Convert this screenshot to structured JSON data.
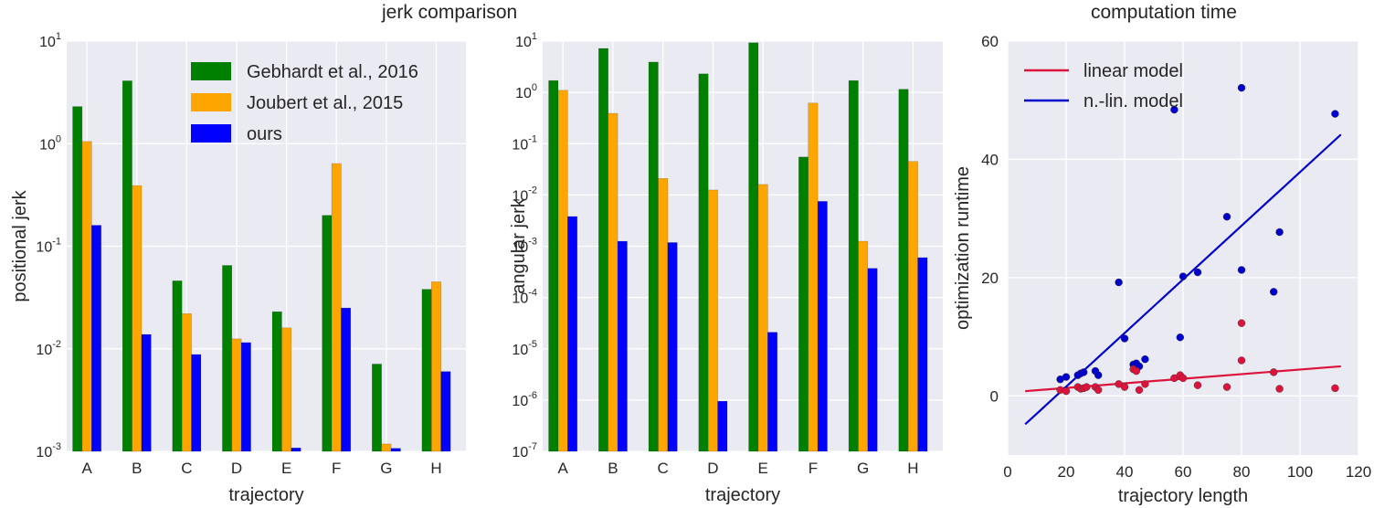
{
  "figure": {
    "group_title": "jerk comparison",
    "right_title": "computation time"
  },
  "colors": {
    "panel_bg": "#eaeaf2",
    "grid": "#ffffff",
    "gebhardt": "#008000",
    "joubert": "#ffa500",
    "ours": "#0000ff",
    "linear": "#dc143c",
    "nonlinear": "#0000cd"
  },
  "chart_data": [
    {
      "type": "bar",
      "title": "",
      "xlabel": "trajectory",
      "ylabel": "positional jerk",
      "yscale": "log",
      "ylim": [
        0.001,
        10
      ],
      "yticks": [
        {
          "value": 10,
          "base": "10",
          "exp": "1"
        },
        {
          "value": 1,
          "base": "10",
          "exp": "0"
        },
        {
          "value": 0.1,
          "base": "10",
          "exp": "-1"
        },
        {
          "value": 0.01,
          "base": "10",
          "exp": "-2"
        },
        {
          "value": 0.001,
          "base": "10",
          "exp": "-3"
        }
      ],
      "categories": [
        "A",
        "B",
        "C",
        "D",
        "E",
        "F",
        "G",
        "H"
      ],
      "legend_position": "top-right",
      "series": [
        {
          "name": "Gebhardt et al., 2016",
          "color": "#008000",
          "values": [
            2.3,
            4.1,
            0.046,
            0.065,
            0.023,
            0.2,
            0.0071,
            0.038
          ]
        },
        {
          "name": "Joubert et al., 2015",
          "color": "#ffa500",
          "values": [
            1.05,
            0.39,
            0.022,
            0.0125,
            0.016,
            0.64,
            0.00118,
            0.045
          ]
        },
        {
          "name": "ours",
          "color": "#0000ff",
          "values": [
            0.16,
            0.0138,
            0.0088,
            0.0115,
            0.00108,
            0.025,
            0.00107,
            0.006
          ]
        }
      ]
    },
    {
      "type": "bar",
      "title": "",
      "xlabel": "trajectory",
      "ylabel": "angular jerk",
      "yscale": "log",
      "ylim": [
        1e-07,
        10
      ],
      "yticks": [
        {
          "value": 10,
          "base": "10",
          "exp": "1"
        },
        {
          "value": 1,
          "base": "10",
          "exp": "0"
        },
        {
          "value": 0.1,
          "base": "10",
          "exp": "-1"
        },
        {
          "value": 0.01,
          "base": "10",
          "exp": "-2"
        },
        {
          "value": 0.001,
          "base": "10",
          "exp": "-3"
        },
        {
          "value": 0.0001,
          "base": "10",
          "exp": "-4"
        },
        {
          "value": 1e-05,
          "base": "10",
          "exp": "-5"
        },
        {
          "value": 1e-06,
          "base": "10",
          "exp": "-6"
        },
        {
          "value": 1e-07,
          "base": "10",
          "exp": "-7"
        }
      ],
      "categories": [
        "A",
        "B",
        "C",
        "D",
        "E",
        "F",
        "G",
        "H"
      ],
      "series": [
        {
          "name": "Gebhardt et al., 2016",
          "color": "#008000",
          "values": [
            1.7,
            7.2,
            3.9,
            2.3,
            9.3,
            0.055,
            1.7,
            1.15
          ]
        },
        {
          "name": "Joubert et al., 2015",
          "color": "#ffa500",
          "values": [
            1.1,
            0.39,
            0.021,
            0.0125,
            0.016,
            0.62,
            0.00125,
            0.045
          ]
        },
        {
          "name": "ours",
          "color": "#0000ff",
          "values": [
            0.0038,
            0.00125,
            0.00118,
            9.5e-07,
            2.1e-05,
            0.0075,
            0.00037,
            0.0006
          ]
        }
      ]
    },
    {
      "type": "scatter",
      "title": "computation time",
      "xlabel": "trajectory length",
      "ylabel": "optimization runtime",
      "xlim": [
        0,
        120
      ],
      "ylim": [
        -10,
        60
      ],
      "xticks": [
        0,
        20,
        40,
        60,
        80,
        100,
        120
      ],
      "yticks": [
        0,
        20,
        40,
        60
      ],
      "legend_position": "top-left",
      "series": [
        {
          "name": "linear model",
          "color": "#dc143c",
          "line": {
            "x": [
              6,
              114
            ],
            "y": [
              0.8,
              5.0
            ]
          },
          "points": [
            [
              18,
              1.0
            ],
            [
              20,
              0.8
            ],
            [
              24,
              1.5
            ],
            [
              25,
              1.2
            ],
            [
              26,
              1.3
            ],
            [
              27,
              1.5
            ],
            [
              30,
              1.5
            ],
            [
              31,
              1.0
            ],
            [
              38,
              2.0
            ],
            [
              40,
              1.5
            ],
            [
              43,
              4.5
            ],
            [
              44,
              4.2
            ],
            [
              45,
              1.0
            ],
            [
              47,
              2.0
            ],
            [
              57,
              3.0
            ],
            [
              59,
              3.5
            ],
            [
              60,
              3.0
            ],
            [
              65,
              1.8
            ],
            [
              75,
              1.5
            ],
            [
              80,
              6.0
            ],
            [
              80,
              12.3
            ],
            [
              91,
              4.0
            ],
            [
              93,
              1.2
            ],
            [
              112,
              1.3
            ]
          ]
        },
        {
          "name": "n.-lin. model",
          "color": "#0000cd",
          "line": {
            "x": [
              6,
              114
            ],
            "y": [
              -4.8,
              44.2
            ]
          },
          "points": [
            [
              18,
              2.8
            ],
            [
              20,
              3.2
            ],
            [
              24,
              3.5
            ],
            [
              25,
              3.8
            ],
            [
              26,
              4.0
            ],
            [
              30,
              4.2
            ],
            [
              31,
              3.5
            ],
            [
              38,
              19.2
            ],
            [
              40,
              9.7
            ],
            [
              43,
              5.3
            ],
            [
              44,
              5.5
            ],
            [
              45,
              5.0
            ],
            [
              47,
              6.2
            ],
            [
              57,
              48.4
            ],
            [
              59,
              9.9
            ],
            [
              60,
              20.2
            ],
            [
              65,
              20.9
            ],
            [
              75,
              30.3
            ],
            [
              80,
              52.1
            ],
            [
              80,
              21.3
            ],
            [
              91,
              17.6
            ],
            [
              93,
              27.7
            ],
            [
              112,
              47.7
            ]
          ]
        }
      ]
    }
  ]
}
